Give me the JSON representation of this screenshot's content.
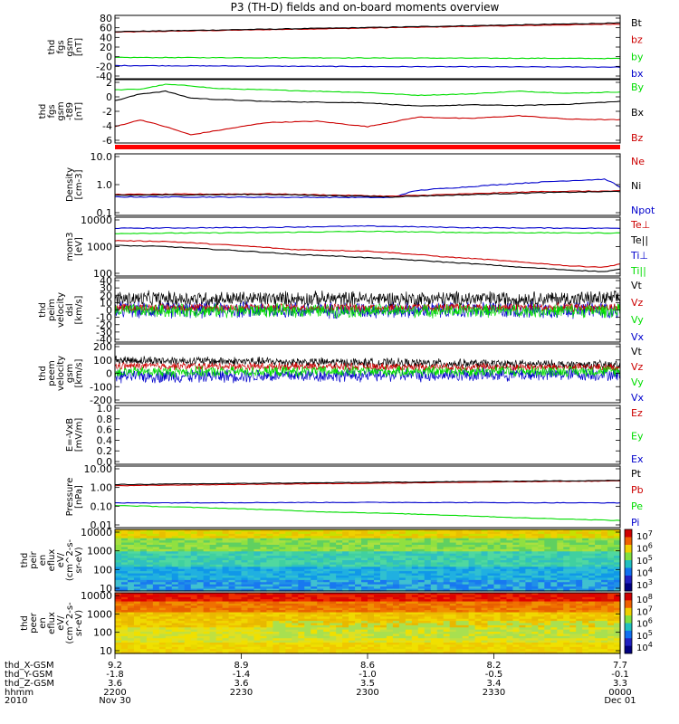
{
  "title": "P3 (TH-D) fields and on-board moments overview",
  "colors": {
    "black": "#000000",
    "red": "#cc0000",
    "green": "#00dd00",
    "blue": "#0000cc"
  },
  "chart_data": [
    {
      "type": "line",
      "ylabel": [
        "thd",
        "fgs",
        "gsm",
        "[nT]"
      ],
      "yticks": [
        "80",
        "60",
        "40",
        "20",
        "0",
        "-20",
        "-40"
      ],
      "ylim": [
        -40,
        85
      ],
      "legend": [
        {
          "name": "Bt",
          "color": "#000000"
        },
        {
          "name": "bz",
          "color": "#cc0000"
        },
        {
          "name": "by",
          "color": "#00dd00"
        },
        {
          "name": "bx",
          "color": "#0000cc"
        }
      ],
      "series": [
        {
          "name": "bz",
          "color": "#cc0000",
          "x": [
            0,
            0.5,
            1
          ],
          "y": [
            52,
            60,
            68
          ]
        },
        {
          "name": "Bt",
          "color": "#000000",
          "x": [
            0,
            0.5,
            1
          ],
          "y": [
            53,
            61,
            70
          ]
        },
        {
          "name": "by",
          "color": "#00dd00",
          "x": [
            0,
            0.5,
            1
          ],
          "y": [
            2,
            1,
            0
          ]
        },
        {
          "name": "bx",
          "color": "#0000cc",
          "x": [
            0,
            0.5,
            1
          ],
          "y": [
            -14,
            -16,
            -17
          ]
        }
      ]
    },
    {
      "type": "line",
      "ylabel": [
        "thd",
        "fgs",
        "gsm",
        "-t89",
        "[nT]"
      ],
      "yticks": [
        "2",
        "0",
        "-2",
        "-4",
        "-6"
      ],
      "ylim": [
        -7,
        2.3
      ],
      "legend": [
        {
          "name": "By",
          "color": "#00dd00"
        },
        {
          "name": "Bx",
          "color": "#000000"
        },
        {
          "name": "Bz",
          "color": "#cc0000"
        }
      ],
      "series": [
        {
          "name": "By",
          "color": "#00dd00",
          "x": [
            0,
            0.05,
            0.1,
            0.15,
            0.2,
            0.3,
            0.4,
            0.5,
            0.6,
            0.7,
            0.8,
            0.9,
            1
          ],
          "y": [
            0.8,
            0.9,
            1.6,
            1.4,
            1.0,
            0.8,
            0.6,
            0.4,
            0.0,
            0.2,
            0.6,
            0.3,
            0.5
          ]
        },
        {
          "name": "Bx",
          "color": "#000000",
          "x": [
            0,
            0.05,
            0.1,
            0.15,
            0.2,
            0.3,
            0.4,
            0.5,
            0.6,
            0.7,
            0.8,
            0.9,
            1
          ],
          "y": [
            -0.8,
            0.2,
            0.6,
            -0.4,
            -0.6,
            -0.9,
            -1.0,
            -1.1,
            -1.6,
            -1.4,
            -1.5,
            -1.3,
            -0.9
          ]
        },
        {
          "name": "Bz",
          "color": "#cc0000",
          "x": [
            0,
            0.05,
            0.1,
            0.15,
            0.2,
            0.3,
            0.4,
            0.5,
            0.6,
            0.7,
            0.8,
            0.9,
            1
          ],
          "y": [
            -4.6,
            -3.6,
            -4.6,
            -5.8,
            -5.2,
            -4.0,
            -3.8,
            -4.6,
            -3.2,
            -3.4,
            -3.0,
            -3.5,
            -3.6
          ]
        }
      ]
    },
    {
      "type": "line",
      "yscale": "log",
      "ylabel": [
        "Density",
        "[cm-3]"
      ],
      "yticks": [
        "10.0",
        "1.0",
        "0.1"
      ],
      "ylim": [
        0.1,
        10
      ],
      "legend": [
        {
          "name": "Ne",
          "color": "#cc0000"
        },
        {
          "name": "Ni",
          "color": "#000000"
        },
        {
          "name": "Npot",
          "color": "#0000cc"
        }
      ],
      "series": [
        {
          "name": "Npot",
          "color": "#0000cc",
          "x": [
            0,
            0.55,
            0.6,
            0.7,
            0.8,
            0.9,
            0.97,
            1
          ],
          "y": [
            0.4,
            0.38,
            0.65,
            0.85,
            1.1,
            1.35,
            1.5,
            0.8
          ]
        },
        {
          "name": "Ne",
          "color": "#cc0000",
          "x": [
            0,
            0.3,
            0.55,
            0.7,
            0.85,
            1
          ],
          "y": [
            0.48,
            0.5,
            0.42,
            0.5,
            0.6,
            0.62
          ]
        },
        {
          "name": "Ni",
          "color": "#000000",
          "x": [
            0,
            0.3,
            0.55,
            0.7,
            0.85,
            1
          ],
          "y": [
            0.45,
            0.48,
            0.4,
            0.47,
            0.55,
            0.6
          ]
        }
      ]
    },
    {
      "type": "line",
      "yscale": "log",
      "ylabel": [
        "mom3",
        "[eV]"
      ],
      "yticks": [
        "10000",
        "1000",
        "100"
      ],
      "ylim": [
        100,
        10000
      ],
      "legend": [
        {
          "name": "Te⊥",
          "color": "#cc0000"
        },
        {
          "name": "Te||",
          "color": "#000000"
        },
        {
          "name": "Ti⊥",
          "color": "#0000cc"
        },
        {
          "name": "Ti||",
          "color": "#00dd00"
        }
      ],
      "series": [
        {
          "name": "Ti⊥",
          "color": "#0000cc",
          "x": [
            0,
            0.3,
            0.5,
            0.7,
            1
          ],
          "y": [
            4200,
            4500,
            5000,
            4400,
            4200
          ]
        },
        {
          "name": "Ti||",
          "color": "#00dd00",
          "x": [
            0,
            0.3,
            0.5,
            0.7,
            1
          ],
          "y": [
            2800,
            3000,
            3300,
            3000,
            2900
          ]
        },
        {
          "name": "Te⊥",
          "color": "#cc0000",
          "x": [
            0,
            0.1,
            0.2,
            0.35,
            0.5,
            0.65,
            0.8,
            0.9,
            0.97,
            1
          ],
          "y": [
            1600,
            1500,
            1200,
            800,
            700,
            450,
            300,
            220,
            200,
            260
          ]
        },
        {
          "name": "Te||",
          "color": "#000000",
          "x": [
            0,
            0.1,
            0.2,
            0.35,
            0.5,
            0.65,
            0.8,
            0.9,
            0.97,
            1
          ],
          "y": [
            1100,
            1000,
            800,
            550,
            420,
            300,
            200,
            160,
            140,
            170
          ]
        }
      ]
    },
    {
      "type": "line",
      "ylabel": [
        "thd",
        "peim",
        "velocity",
        "dsl",
        "[km/s]"
      ],
      "yticks": [
        "40",
        "30",
        "20",
        "10",
        "0",
        "-10",
        "-20",
        "-30",
        "-40"
      ],
      "ylim": [
        -40,
        40
      ],
      "noisy": true,
      "legend": [
        {
          "name": "Vt",
          "color": "#000000"
        },
        {
          "name": "Vz",
          "color": "#cc0000"
        },
        {
          "name": "Vy",
          "color": "#00dd00"
        },
        {
          "name": "Vx",
          "color": "#0000cc"
        }
      ],
      "series": [
        {
          "name": "Vx",
          "color": "#0000cc",
          "x": [
            0,
            1
          ],
          "y": [
            0,
            0
          ],
          "amp": 10
        },
        {
          "name": "Vt",
          "color": "#000000",
          "x": [
            0,
            1
          ],
          "y": [
            14,
            14
          ],
          "amp": 9
        },
        {
          "name": "Vz",
          "color": "#cc0000",
          "x": [
            0,
            1
          ],
          "y": [
            3,
            3
          ],
          "amp": 5
        },
        {
          "name": "Vy",
          "color": "#00dd00",
          "x": [
            0,
            1
          ],
          "y": [
            -1,
            -1
          ],
          "amp": 8
        }
      ]
    },
    {
      "type": "line",
      "ylabel": [
        "thd",
        "peem",
        "velocity",
        "gsm",
        "[km/s]"
      ],
      "yticks": [
        "200",
        "100",
        "0",
        "-100",
        "-200"
      ],
      "ylim": [
        -200,
        200
      ],
      "noisy": true,
      "legend": [
        {
          "name": "Vt",
          "color": "#000000"
        },
        {
          "name": "Vz",
          "color": "#cc0000"
        },
        {
          "name": "Vy",
          "color": "#00dd00"
        },
        {
          "name": "Vx",
          "color": "#0000cc"
        }
      ],
      "series": [
        {
          "name": "Vx",
          "color": "#0000cc",
          "x": [
            0,
            1
          ],
          "y": [
            -20,
            -5
          ],
          "amp": 45
        },
        {
          "name": "Vt",
          "color": "#000000",
          "x": [
            0,
            1
          ],
          "y": [
            90,
            55
          ],
          "amp": 30
        },
        {
          "name": "Vz",
          "color": "#cc0000",
          "x": [
            0,
            1
          ],
          "y": [
            50,
            40
          ],
          "amp": 25
        },
        {
          "name": "Vy",
          "color": "#00dd00",
          "x": [
            0,
            1
          ],
          "y": [
            10,
            15
          ],
          "amp": 35
        }
      ]
    },
    {
      "type": "line",
      "ylabel": [
        "E=-VxB",
        "[mV/m]"
      ],
      "yticks": [
        "1.0",
        "0.8",
        "0.6",
        "0.4",
        "0.2",
        "0.0"
      ],
      "ylim": [
        0,
        1
      ],
      "legend": [
        {
          "name": "Ez",
          "color": "#cc0000"
        },
        {
          "name": "Ey",
          "color": "#00dd00"
        },
        {
          "name": "Ex",
          "color": "#0000cc"
        }
      ],
      "series": []
    },
    {
      "type": "line",
      "yscale": "log",
      "ylabel": [
        "Pressure",
        "[nPa]"
      ],
      "yticks": [
        "10.00",
        "1.00",
        "0.10",
        "0.01"
      ],
      "ylim": [
        0.01,
        10
      ],
      "legend": [
        {
          "name": "Pt",
          "color": "#000000"
        },
        {
          "name": "Pb",
          "color": "#cc0000"
        },
        {
          "name": "Pe",
          "color": "#00dd00"
        },
        {
          "name": "Pi",
          "color": "#0000cc"
        }
      ],
      "series": [
        {
          "name": "Pb",
          "color": "#cc0000",
          "x": [
            0,
            0.5,
            1
          ],
          "y": [
            1.1,
            1.45,
            1.9
          ]
        },
        {
          "name": "Pt",
          "color": "#000000",
          "x": [
            0,
            0.5,
            1
          ],
          "y": [
            1.25,
            1.6,
            2.0
          ]
        },
        {
          "name": "Pi",
          "color": "#0000cc",
          "x": [
            0,
            0.5,
            1
          ],
          "y": [
            0.16,
            0.17,
            0.16
          ]
        },
        {
          "name": "Pe",
          "color": "#00dd00",
          "x": [
            0,
            0.2,
            0.4,
            0.6,
            0.8,
            1
          ],
          "y": [
            0.12,
            0.09,
            0.06,
            0.045,
            0.03,
            0.022
          ]
        }
      ]
    },
    {
      "type": "heatmap",
      "ylabel": [
        "thd",
        "peir",
        "en",
        "eflux",
        "eV/",
        "(cm^2-s-",
        "sr-eV)"
      ],
      "yticks": [
        "10000",
        "1000",
        "100",
        "10"
      ],
      "colorbar": [
        "10^7",
        "10^6",
        "10^5",
        "10^4",
        "10^3"
      ]
    },
    {
      "type": "heatmap",
      "ylabel": [
        "thd",
        "peer",
        "en",
        "eflux",
        "eV/",
        "(cm^2-s-",
        "sr-eV)"
      ],
      "yticks": [
        "10000",
        "1000",
        "100",
        "10"
      ],
      "colorbar": [
        "10^8",
        "10^7",
        "10^6",
        "10^5",
        "10^4"
      ]
    }
  ],
  "xaxis": {
    "labels": [
      "thd_X-GSM",
      "thd_Y-GSM",
      "thd_Z-GSM",
      "hhmm",
      "2010"
    ],
    "ticks": [
      {
        "values": [
          "9.2",
          "-1.8",
          "3.6",
          "2200",
          "Nov 30"
        ]
      },
      {
        "values": [
          "8.9",
          "-1.4",
          "3.6",
          "2230",
          ""
        ]
      },
      {
        "values": [
          "8.6",
          "-1.0",
          "3.5",
          "2300",
          ""
        ]
      },
      {
        "values": [
          "8.2",
          "-0.5",
          "3.4",
          "2330",
          ""
        ]
      },
      {
        "values": [
          "7.7",
          "-0.1",
          "3.3",
          "0000",
          "Dec 01"
        ]
      }
    ]
  }
}
